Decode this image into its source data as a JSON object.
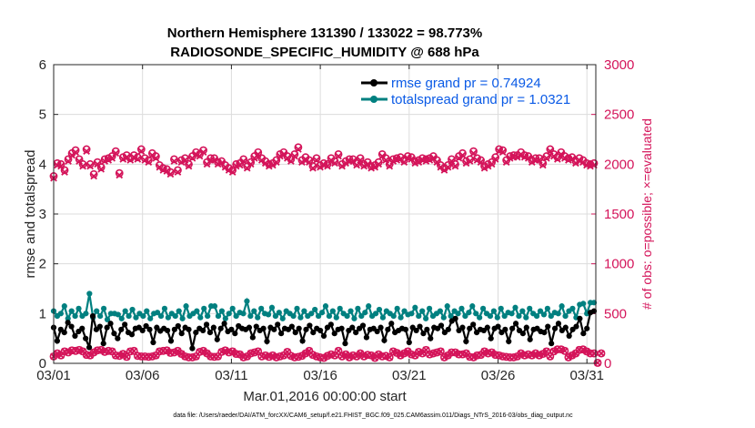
{
  "chart_data": {
    "type": "line",
    "title": [
      "Northern Hemisphere 131390 / 133022 = 98.773%",
      "RADIOSONDE_SPECIFIC_HUMIDITY @ 688 hPa"
    ],
    "xlabel": "Mar.01,2016 00:00:00 start",
    "ylabel_left": "rmse and totalspread",
    "ylabel_right": "# of obs: o=possible; ×=evaluated",
    "x_tick_labels": [
      "03/01",
      "03/06",
      "03/11",
      "03/16",
      "03/21",
      "03/26",
      "03/31"
    ],
    "x_tick_days": [
      0,
      5,
      10,
      15,
      20,
      25,
      30
    ],
    "xlim": [
      0,
      30.5
    ],
    "ylim_left": [
      0,
      6
    ],
    "y_ticks_left": [
      0,
      1,
      2,
      3,
      4,
      5,
      6
    ],
    "ylim_right": [
      0,
      3000
    ],
    "y_ticks_right": [
      0,
      500,
      1000,
      1500,
      2000,
      2500,
      3000
    ],
    "grid": true,
    "legend": [
      "rmse grand pr = 0.74924",
      "totalspread grand pr = 1.0321"
    ],
    "legend_position": "top-right",
    "footnote": "data file: /Users/raeder/DAI/ATM_forcXX/CAM6_setup/f.e21.FHIST_BGC.f09_025.CAM6assim.011/Diags_NTrS_2016-03/obs_diag_output.nc",
    "colors": {
      "rmse": "#000000",
      "totalspread": "#008080",
      "obs": "#d4145a",
      "legend_text": "#0a5ae6",
      "grid": "#dcdcdc"
    },
    "x_step_days": 0.25,
    "series": [
      {
        "name": "rmse",
        "axis": "left",
        "values": [
          0.72,
          0.45,
          0.68,
          0.62,
          0.82,
          0.74,
          0.55,
          0.64,
          0.7,
          0.5,
          0.32,
          0.95,
          0.68,
          0.74,
          0.4,
          0.72,
          0.8,
          0.6,
          0.5,
          0.68,
          0.78,
          0.62,
          0.58,
          0.7,
          0.72,
          0.66,
          0.75,
          0.68,
          0.42,
          0.72,
          0.65,
          0.7,
          0.66,
          0.45,
          0.68,
          0.75,
          0.6,
          0.72,
          0.68,
          0.3,
          0.62,
          0.7,
          0.66,
          0.78,
          0.62,
          0.72,
          0.48,
          0.7,
          0.8,
          0.64,
          0.68,
          0.6,
          0.75,
          0.7,
          0.68,
          0.72,
          0.52,
          0.74,
          0.66,
          0.7,
          0.44,
          0.72,
          0.68,
          0.78,
          0.6,
          0.7,
          0.68,
          0.74,
          0.62,
          0.7,
          0.45,
          0.68,
          0.76,
          0.62,
          0.7,
          0.66,
          0.55,
          0.72,
          0.78,
          0.6,
          0.68,
          0.7,
          0.4,
          0.66,
          0.72,
          0.62,
          0.7,
          0.76,
          0.52,
          0.68,
          0.7,
          0.64,
          0.72,
          0.46,
          0.68,
          0.8,
          0.62,
          0.66,
          0.7,
          0.68,
          0.42,
          0.72,
          0.66,
          0.74,
          0.6,
          0.68,
          0.5,
          0.72,
          0.7,
          0.76,
          0.62,
          0.68,
          0.85,
          0.9,
          0.66,
          0.72,
          0.44,
          0.7,
          0.78,
          0.62,
          0.68,
          0.66,
          0.72,
          0.5,
          0.7,
          0.74,
          0.62,
          0.68,
          0.44,
          0.7,
          0.8,
          0.66,
          0.6,
          0.72,
          0.48,
          0.68,
          0.7,
          0.64,
          0.62,
          0.74,
          0.4,
          0.7,
          0.8,
          0.66,
          0.72,
          0.55,
          0.68,
          0.74,
          0.9,
          0.6,
          0.7,
          1.02,
          1.05
        ]
      },
      {
        "name": "totalspread",
        "axis": "left",
        "values": [
          1.05,
          0.95,
          1.0,
          1.15,
          0.9,
          1.05,
          0.95,
          1.1,
          0.95,
          1.0,
          1.4,
          0.92,
          1.05,
          0.95,
          1.1,
          0.88,
          1.0,
          1.0,
          0.98,
          0.9,
          1.05,
          0.95,
          1.08,
          0.92,
          1.0,
          0.95,
          1.05,
          0.9,
          1.0,
          1.02,
          0.95,
          1.1,
          0.92,
          1.0,
          0.95,
          1.05,
          0.9,
          1.15,
          0.95,
          1.0,
          1.05,
          0.92,
          1.1,
          0.95,
          1.15,
          1.15,
          0.95,
          1.05,
          0.9,
          1.0,
          1.1,
          0.95,
          1.02,
          1.0,
          1.25,
          0.95,
          1.05,
          0.92,
          1.1,
          1.0,
          0.98,
          1.12,
          0.95,
          1.02,
          0.9,
          1.05,
          1.0,
          0.95,
          1.1,
          0.92,
          1.05,
          0.95,
          1.0,
          1.08,
          0.95,
          1.02,
          1.15,
          0.95,
          1.05,
          0.92,
          1.1,
          1.0,
          0.95,
          1.05,
          0.9,
          1.1,
          0.95,
          1.02,
          1.15,
          0.95,
          1.0,
          1.08,
          0.92,
          1.05,
          1.0,
          0.95,
          1.1,
          0.92,
          1.05,
          0.98,
          1.0,
          1.12,
          0.95,
          1.05,
          0.9,
          1.1,
          0.95,
          1.0,
          1.05,
          0.92,
          1.15,
          0.95,
          1.05,
          1.0,
          1.1,
          0.95,
          1.02,
          1.15,
          1.0,
          0.92,
          1.1,
          1.0,
          0.95,
          1.05,
          0.92,
          1.1,
          0.95,
          1.02,
          1.0,
          1.12,
          0.95,
          1.05,
          0.92,
          1.1,
          1.0,
          0.95,
          1.05,
          0.98,
          1.1,
          0.95,
          1.02,
          1.0,
          1.15,
          0.95,
          1.05,
          1.1,
          0.92,
          1.18,
          1.2,
          1.0,
          1.22,
          1.22
        ]
      },
      {
        "name": "obs_possible",
        "axis": "right",
        "values": [
          1880,
          2010,
          2000,
          1940,
          2050,
          2110,
          2140,
          2050,
          2000,
          2150,
          2000,
          1900,
          2020,
          1970,
          2050,
          2060,
          2080,
          2130,
          1910,
          2070,
          2090,
          2060,
          2090,
          2070,
          2150,
          2060,
          2040,
          2110,
          2080,
          1990,
          1960,
          1950,
          1920,
          2050,
          1940,
          2040,
          2060,
          2000,
          2080,
          2120,
          2100,
          2140,
          2020,
          2060,
          2060,
          2020,
          2030,
          1990,
          1960,
          1940,
          2000,
          2010,
          2050,
          1980,
          2020,
          2080,
          2120,
          2060,
          2030,
          2000,
          2010,
          2040,
          2100,
          2120,
          2080,
          2050,
          2100,
          2170,
          2040,
          2070,
          2040,
          1980,
          2060,
          1990,
          2010,
          2000,
          2060,
          2030,
          2100,
          2000,
          2030,
          2050,
          2050,
          2010,
          2060,
          2000,
          2020,
          1980,
          1990,
          2020,
          2100,
          2060,
          2000,
          2050,
          2060,
          2070,
          2040,
          2080,
          2070,
          2030,
          2040,
          2060,
          2050,
          2060,
          2080,
          2040,
          1990,
          1960,
          1990,
          2050,
          2000,
          2080,
          2110,
          2030,
          2050,
          2130,
          2060,
          2040,
          1980,
          2000,
          2020,
          2070,
          2150,
          2140,
          2040,
          2080,
          2090,
          2090,
          2120,
          2090,
          2080,
          2040,
          2060,
          2060,
          2010,
          2080,
          2150,
          2100,
          2070,
          2120,
          2080,
          2060,
          2070,
          2030,
          2060,
          2040,
          2010,
          2000,
          2010
        ]
      },
      {
        "name": "obs_evaluated",
        "axis": "right",
        "values": [
          1860,
          1990,
          1980,
          1920,
          2030,
          2090,
          2120,
          2030,
          1980,
          2130,
          1980,
          1880,
          2000,
          1950,
          2030,
          2040,
          2060,
          2110,
          1890,
          2050,
          2070,
          2040,
          2070,
          2050,
          2130,
          2040,
          2020,
          2090,
          2060,
          1970,
          1940,
          1930,
          1900,
          2030,
          1920,
          2020,
          2040,
          1980,
          2060,
          2100,
          2080,
          2120,
          2000,
          2040,
          2040,
          2000,
          2010,
          1970,
          1940,
          1920,
          1980,
          1990,
          2030,
          1960,
          2000,
          2060,
          2100,
          2040,
          2010,
          1980,
          1990,
          2020,
          2080,
          2100,
          2060,
          2030,
          2080,
          2150,
          2020,
          2050,
          2020,
          1960,
          2040,
          1970,
          1990,
          1980,
          2040,
          2010,
          2080,
          1980,
          2010,
          2030,
          2030,
          1990,
          2040,
          1980,
          2000,
          1960,
          1970,
          2000,
          2080,
          2040,
          1980,
          2030,
          2040,
          2050,
          2020,
          2060,
          2050,
          2010,
          2020,
          2040,
          2030,
          2040,
          2060,
          2020,
          1970,
          1940,
          1970,
          2030,
          1980,
          2060,
          2090,
          2010,
          2030,
          2110,
          2040,
          2020,
          1960,
          1980,
          2000,
          2050,
          2130,
          2120,
          2020,
          2060,
          2070,
          2070,
          2100,
          2070,
          2060,
          2020,
          2040,
          2040,
          1990,
          2060,
          2130,
          2080,
          2050,
          2100,
          2060,
          2040,
          2050,
          2010,
          2040,
          2020,
          1990,
          1980,
          1990
        ]
      },
      {
        "name": "obs_low_possible",
        "axis": "right",
        "values": [
          70,
          100,
          80,
          120,
          110,
          130,
          125,
          135,
          120,
          85,
          80,
          110,
          130,
          135,
          115,
          125,
          120,
          80,
          75,
          95,
          65,
          120,
          125,
          75,
          70,
          70,
          65,
          70,
          80,
          120,
          125,
          130,
          105,
          110,
          125,
          95,
          70,
          60,
          60,
          70,
          115,
          125,
          100,
          70,
          65,
          70,
          115,
          130,
          110,
          120,
          95,
          90,
          60,
          70,
          100,
          110,
          120,
          70,
          80,
          65,
          80,
          60,
          70,
          80,
          115,
          75,
          60,
          65,
          75,
          100,
          125,
          85,
          70,
          60,
          55,
          75,
          90,
          80,
          125,
          70,
          90,
          60,
          80,
          70,
          100,
          70,
          85,
          80,
          55,
          90,
          70,
          75,
          60,
          120,
          105,
          80,
          100,
          120,
          90,
          80,
          115,
          100,
          135,
          90,
          100,
          110,
          120,
          60,
          80,
          110,
          110,
          90,
          90,
          100,
          65,
          60,
          80,
          85,
          120,
          100,
          110,
          85,
          80,
          70,
          65,
          60,
          60,
          70,
          100,
          80,
          90,
          80,
          100,
          80,
          95,
          120,
          70,
          120,
          140,
          140,
          125,
          60,
          80,
          100,
          135,
          140,
          120,
          100,
          100,
          5,
          100
        ]
      },
      {
        "name": "obs_low_evaluated",
        "axis": "right",
        "values": [
          70,
          100,
          80,
          120,
          110,
          130,
          125,
          135,
          120,
          85,
          80,
          110,
          130,
          135,
          115,
          125,
          120,
          80,
          75,
          95,
          65,
          120,
          125,
          75,
          70,
          70,
          65,
          70,
          80,
          120,
          125,
          130,
          105,
          110,
          125,
          95,
          70,
          60,
          60,
          70,
          115,
          125,
          100,
          70,
          65,
          70,
          115,
          130,
          110,
          120,
          95,
          90,
          60,
          70,
          100,
          110,
          120,
          70,
          80,
          65,
          80,
          60,
          70,
          80,
          115,
          75,
          60,
          65,
          75,
          100,
          125,
          85,
          70,
          60,
          55,
          75,
          90,
          80,
          125,
          70,
          90,
          60,
          80,
          70,
          100,
          70,
          85,
          80,
          55,
          90,
          70,
          75,
          60,
          120,
          105,
          80,
          100,
          120,
          90,
          80,
          115,
          100,
          135,
          90,
          100,
          110,
          120,
          60,
          80,
          110,
          110,
          90,
          90,
          100,
          65,
          60,
          80,
          85,
          120,
          100,
          110,
          85,
          80,
          70,
          65,
          60,
          60,
          70,
          100,
          80,
          90,
          80,
          100,
          80,
          95,
          120,
          70,
          120,
          140,
          140,
          125,
          60,
          80,
          100,
          135,
          140,
          120,
          100,
          100,
          5,
          100
        ]
      }
    ]
  }
}
